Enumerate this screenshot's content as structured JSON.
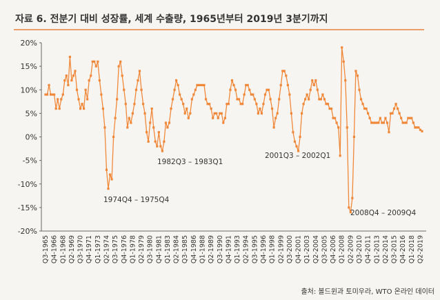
{
  "chart_data": {
    "type": "line",
    "title": "자료 6. 전분기 대비 성장률, 세계 수출량, 1965년부터 2019년 3분기까지",
    "source": "출처: 볼드윈과 토미우라, WTO 온라인 데이터",
    "annotations": [
      "1974Q4 – 1975Q4",
      "1982Q3 – 1983Q1",
      "2001Q3 – 2002Q1",
      "2008Q4 – 2009Q4"
    ],
    "ylim": [
      -20,
      20
    ],
    "yticks": [
      {
        "value": -20,
        "label": "-20%"
      },
      {
        "value": -15,
        "label": "-15%"
      },
      {
        "value": -10,
        "label": "-10%"
      },
      {
        "value": -5,
        "label": "-5%"
      },
      {
        "value": 0,
        "label": "0%"
      },
      {
        "value": 5,
        "label": "5%"
      },
      {
        "value": 10,
        "label": "10%"
      },
      {
        "value": 15,
        "label": "15%"
      },
      {
        "value": 20,
        "label": "20%"
      }
    ],
    "color": "#f0883a",
    "categories": [
      "Q3-1965",
      null,
      null,
      null,
      null,
      "Q4-1966",
      null,
      null,
      null,
      null,
      "Q1-1968",
      null,
      null,
      null,
      null,
      "Q2-1969",
      null,
      null,
      null,
      null,
      "Q3-1970",
      null,
      null,
      null,
      null,
      "Q4-1971",
      null,
      null,
      null,
      null,
      "Q1-1973",
      null,
      null,
      null,
      null,
      "Q2-1974",
      null,
      null,
      null,
      null,
      "Q3-1975",
      null,
      null,
      null,
      null,
      "Q4-1976",
      null,
      null,
      null,
      null,
      "Q1-1978",
      null,
      null,
      null,
      null,
      "Q2-1979",
      null,
      null,
      null,
      null,
      "Q3-1980",
      null,
      null,
      null,
      null,
      "Q4-1981",
      null,
      null,
      null,
      null,
      "Q1-1983",
      null,
      null,
      null,
      null,
      "Q2-1984",
      null,
      null,
      null,
      null,
      "Q3-1985",
      null,
      null,
      null,
      null,
      "Q4-1986",
      null,
      null,
      null,
      null,
      "Q1-1988",
      null,
      null,
      null,
      null,
      "Q2-1989",
      null,
      null,
      null,
      null,
      "Q3-1990",
      null,
      null,
      null,
      null,
      "Q4-1991",
      null,
      null,
      null,
      null,
      "Q1-1993",
      null,
      null,
      null,
      null,
      "Q2-1994",
      null,
      null,
      null,
      null,
      "Q3-1995",
      null,
      null,
      null,
      null,
      "Q4-1996",
      null,
      null,
      null,
      null,
      "Q1-1998",
      null,
      null,
      null,
      null,
      "Q2-1999",
      null,
      null,
      null,
      null,
      "Q3-2000",
      null,
      null,
      null,
      null,
      "Q4-2001",
      null,
      null,
      null,
      null,
      "Q1-2003",
      null,
      null,
      null,
      null,
      "Q2-2004",
      null,
      null,
      null,
      null,
      "Q3-2005",
      null,
      null,
      null,
      null,
      "Q4-2006",
      null,
      null,
      null,
      null,
      "Q1-2008",
      null,
      null,
      null,
      null,
      "Q2-2009",
      null,
      null,
      null,
      null,
      "Q3-2010",
      null,
      null,
      null,
      null,
      "Q4-2011",
      null,
      null,
      null,
      null,
      "Q1-2013",
      null,
      null,
      null,
      null,
      "Q2-2014",
      null,
      null,
      null,
      null,
      "Q3-2015",
      null,
      null,
      null,
      null,
      "Q4-2016",
      null,
      null,
      null,
      null,
      "Q1-2018",
      null,
      null,
      null,
      null,
      "Q2-2019",
      null
    ],
    "values": [
      9,
      9,
      11,
      9,
      9,
      9,
      6,
      8,
      6,
      8,
      9,
      12,
      13,
      11,
      17,
      12,
      13,
      14,
      10,
      8,
      6,
      7,
      6,
      10,
      8,
      12,
      13,
      16,
      16,
      15,
      16,
      12,
      9,
      6,
      2,
      -7,
      -11,
      -8,
      -9,
      0,
      4,
      8,
      15,
      16,
      13,
      10,
      7,
      2,
      4,
      3,
      5,
      7,
      10,
      12,
      14,
      10,
      7,
      5,
      1,
      -1,
      3,
      6,
      2,
      -1,
      -2,
      1,
      -2,
      -3,
      -1,
      3,
      2,
      3,
      6,
      8,
      10,
      12,
      11,
      9,
      8,
      7,
      5,
      6,
      4,
      5,
      8,
      9,
      10,
      11,
      11,
      11,
      11,
      11,
      8,
      7,
      7,
      6,
      4,
      5,
      5,
      4,
      5,
      5,
      3,
      4,
      7,
      7,
      10,
      12,
      11,
      10,
      8,
      8,
      7,
      7,
      9,
      11,
      11,
      10,
      9,
      9,
      8,
      7,
      5,
      6,
      5,
      7,
      9,
      10,
      10,
      8,
      6,
      2,
      4,
      5,
      8,
      11,
      14,
      14,
      13,
      11,
      9,
      5,
      1,
      -1,
      -2,
      -3,
      0,
      5,
      7,
      8,
      9,
      8,
      10,
      12,
      11,
      12,
      10,
      8,
      8,
      9,
      8,
      7,
      7,
      6,
      6,
      4,
      4,
      3,
      2,
      -4,
      19,
      16,
      12,
      2,
      -15,
      -16,
      -13,
      0,
      14,
      13,
      10,
      8,
      7,
      6,
      6,
      5,
      4,
      3,
      3,
      3,
      3,
      3,
      4,
      3,
      3,
      4,
      3,
      1,
      5,
      5,
      6,
      7,
      6,
      5,
      4,
      3,
      3,
      3,
      4,
      4,
      4,
      3,
      2,
      2,
      2,
      1.5,
      1.2
    ]
  }
}
